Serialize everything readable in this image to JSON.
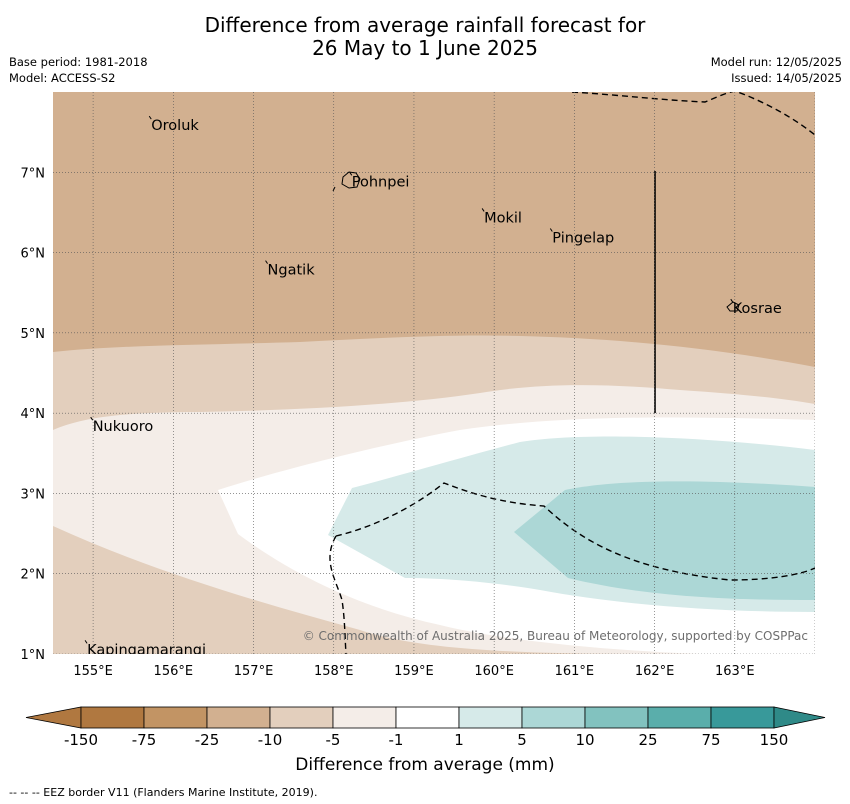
{
  "title_line1": "Difference from average rainfall forecast for",
  "title_line2": "26 May to 1 June 2025",
  "base_period": "Base period: 1981-2018",
  "model": "Model: ACCESS-S2",
  "model_run": "Model run: 12/05/2025",
  "issued": "Issued: 14/05/2025",
  "copyright": "© Commonwealth of Australia 2025, Bureau of Meteorology, supported by COSPPac",
  "footer_note": "--  --  -- EEZ border V11 (Flanders Marine Institute, 2019).",
  "colorbar_label": "Difference from average (mm)",
  "colorbar_ticks": [
    "-150",
    "-75",
    "-25",
    "-10",
    "-5",
    "-1",
    "1",
    "5",
    "10",
    "25",
    "75",
    "150"
  ],
  "colorbar_colors": [
    "#b07840",
    "#c29464",
    "#d2b090",
    "#e3cfbd",
    "#f4ede8",
    "#ffffff",
    "#d6eae9",
    "#acd7d6",
    "#82c2bf",
    "#5aaeab",
    "#38999a"
  ],
  "x_axis_labels": [
    "155°E",
    "156°E",
    "157°E",
    "158°E",
    "159°E",
    "160°E",
    "161°E",
    "162°E",
    "163°E"
  ],
  "y_axis_labels": [
    "7°N",
    "6°N",
    "5°N",
    "4°N",
    "3°N",
    "2°N",
    "1°N"
  ],
  "places": [
    {
      "name": "Oroluk",
      "lon": 155.7,
      "lat": 7.6
    },
    {
      "name": "Pohnpei",
      "lon": 158.2,
      "lat": 6.9
    },
    {
      "name": "Mokil",
      "lon": 159.85,
      "lat": 6.45
    },
    {
      "name": "Pingelap",
      "lon": 160.7,
      "lat": 6.2
    },
    {
      "name": "Ngatik",
      "lon": 157.15,
      "lat": 5.8
    },
    {
      "name": "Kosrae",
      "lon": 162.95,
      "lat": 5.32
    },
    {
      "name": "Nukuoro",
      "lon": 154.97,
      "lat": 3.85
    },
    {
      "name": "Kapingamarangi",
      "lon": 154.9,
      "lat": 1.07
    }
  ],
  "map_extent": {
    "lon_min": 154.5,
    "lon_max": 164.0,
    "lat_min": 1.0,
    "lat_max": 8.0
  }
}
